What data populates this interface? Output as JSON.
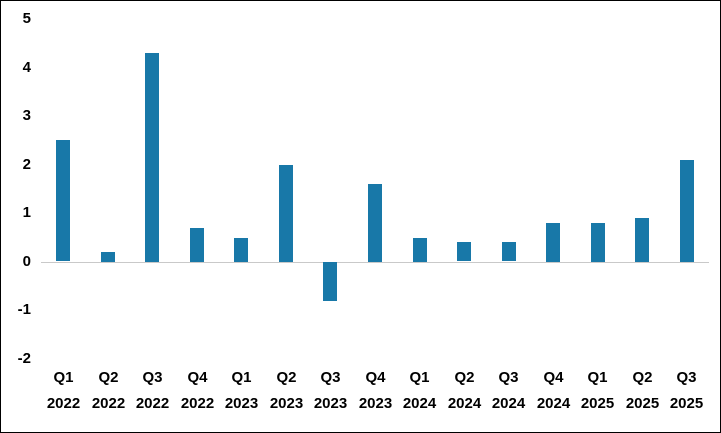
{
  "chart": {
    "background_color": "#ffffff",
    "frame_border_color": "#000000",
    "text_color": "#000000"
  },
  "chart_data": {
    "type": "bar",
    "title": "",
    "xlabel": "",
    "ylabel": "",
    "bar_color": "#1878a8",
    "zero_line_color": "#c9c9c9",
    "grid": false,
    "legend_position": "none",
    "ylim": [
      -2,
      5
    ],
    "yticks": [
      5,
      4,
      3,
      2,
      1,
      0,
      -1,
      -2
    ],
    "categories": [
      "Q1 2022",
      "Q2 2022",
      "Q3 2022",
      "Q4 2022",
      "Q1 2023",
      "Q2 2023",
      "Q3 2023",
      "Q4 2023",
      "Q1 2024",
      "Q2 2024",
      "Q3 2024",
      "Q4 2024",
      "Q1 2025",
      "Q2 2025",
      "Q3 2025"
    ],
    "category_labels": [
      [
        "Q1",
        "2022"
      ],
      [
        "Q2",
        "2022"
      ],
      [
        "Q3",
        "2022"
      ],
      [
        "Q4",
        "2022"
      ],
      [
        "Q1",
        "2023"
      ],
      [
        "Q2",
        "2023"
      ],
      [
        "Q3",
        "2023"
      ],
      [
        "Q4",
        "2023"
      ],
      [
        "Q1",
        "2024"
      ],
      [
        "Q2",
        "2024"
      ],
      [
        "Q3",
        "2024"
      ],
      [
        "Q4",
        "2024"
      ],
      [
        "Q1",
        "2025"
      ],
      [
        "Q2",
        "2025"
      ],
      [
        "Q3",
        "2025"
      ]
    ],
    "values": [
      2.5,
      0.2,
      4.3,
      0.7,
      0.5,
      2.0,
      -0.8,
      1.6,
      0.5,
      0.4,
      0.4,
      0.8,
      0.8,
      0.9,
      2.1
    ]
  }
}
